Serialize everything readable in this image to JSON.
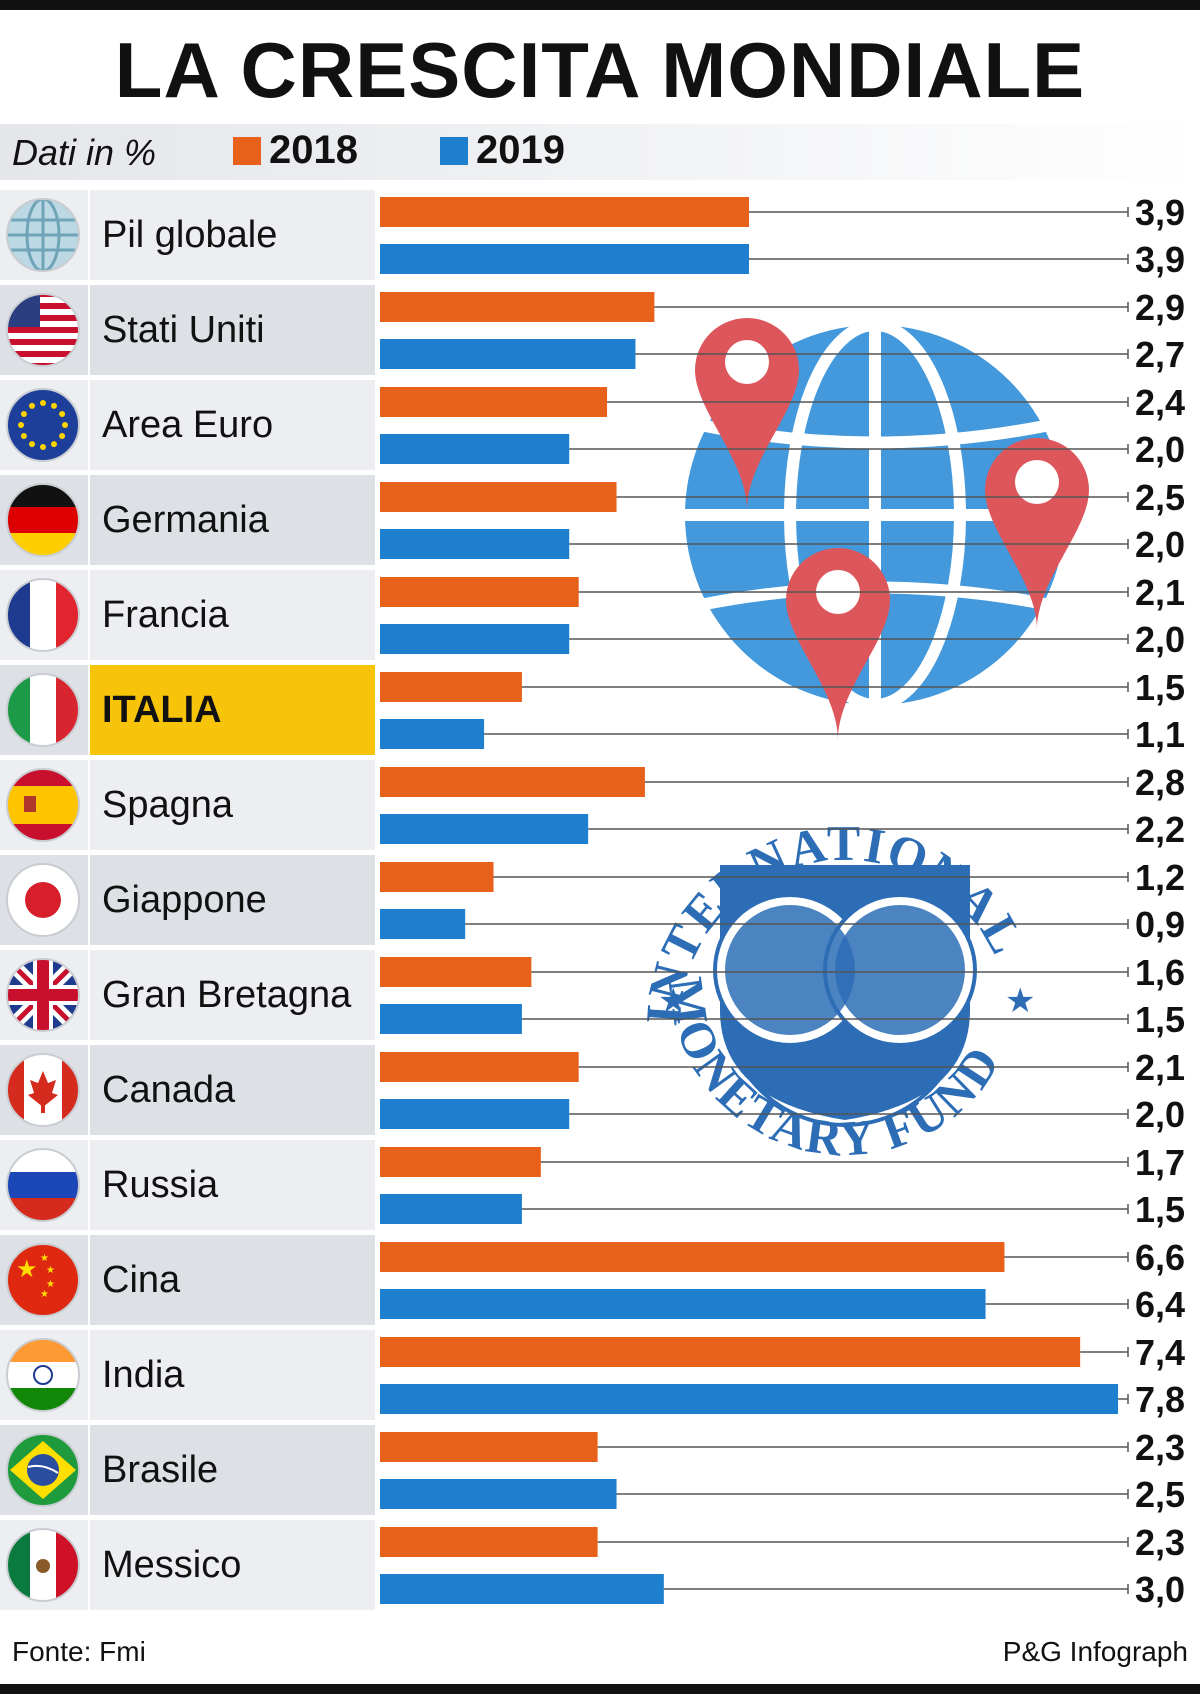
{
  "title": "LA CRESCITA MONDIALE",
  "legend": {
    "unit": "Dati in %",
    "label_2018": "2018",
    "label_2019": "2019"
  },
  "colors": {
    "y2018": "#e8611a",
    "y2019": "#1f7fcf",
    "highlight": "#f8c40a"
  },
  "decorations": {
    "globe": "globe-with-location-pins-icon",
    "logo": "imf-seal-logo",
    "logo_text_top": "INTERNATIONAL",
    "logo_text_bottom": "MONETARY FUND"
  },
  "footer": {
    "source": "Fonte: Fmi",
    "credit": "P&G Infograph"
  },
  "chart_data": {
    "type": "bar",
    "orientation": "horizontal",
    "categories": [
      "Pil globale",
      "Stati Uniti",
      "Area Euro",
      "Germania",
      "Francia",
      "ITALIA",
      "Spagna",
      "Giappone",
      "Gran Bretagna",
      "Canada",
      "Russia",
      "Cina",
      "India",
      "Brasile",
      "Messico"
    ],
    "highlight_category": "ITALIA",
    "series": [
      {
        "name": "2018",
        "values": [
          3.9,
          2.9,
          2.4,
          2.5,
          2.1,
          1.5,
          2.8,
          1.2,
          1.6,
          2.1,
          1.7,
          6.6,
          7.4,
          2.3,
          2.3
        ],
        "labels": [
          "3,9",
          "2,9",
          "2,4",
          "2,5",
          "2,1",
          "1,5",
          "2,8",
          "1,2",
          "1,6",
          "2,1",
          "1,7",
          "6,6",
          "7,4",
          "2,3",
          "2,3"
        ]
      },
      {
        "name": "2019",
        "values": [
          3.9,
          2.7,
          2.0,
          2.0,
          2.0,
          1.1,
          2.2,
          0.9,
          1.5,
          2.0,
          1.5,
          6.4,
          7.8,
          2.5,
          3.0
        ],
        "labels": [
          "3,9",
          "2,7",
          "2,0",
          "2,0",
          "2,0",
          "1,1",
          "2,2",
          "0,9",
          "1,5",
          "2,0",
          "1,5",
          "6,4",
          "7,8",
          "2,5",
          "3,0"
        ]
      }
    ],
    "flags": [
      "globe-icon",
      "usa-flag-icon",
      "eu-flag-icon",
      "germany-flag-icon",
      "france-flag-icon",
      "italy-flag-icon",
      "spain-flag-icon",
      "japan-flag-icon",
      "uk-flag-icon",
      "canada-flag-icon",
      "russia-flag-icon",
      "china-flag-icon",
      "india-flag-icon",
      "brazil-flag-icon",
      "mexico-flag-icon"
    ],
    "xlim": [
      0,
      7.8
    ],
    "grid": false,
    "legend_position": "top-left"
  }
}
